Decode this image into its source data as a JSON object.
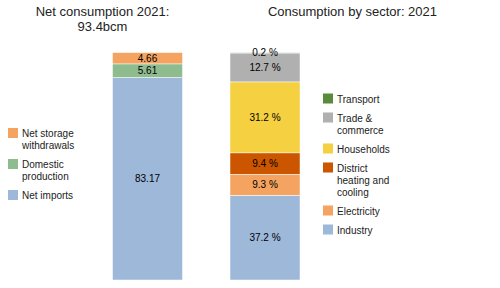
{
  "chart_data": [
    {
      "type": "bar",
      "title": "Net consumption 2021:\n93.4bcm",
      "stacked": true,
      "data_labels": true,
      "tick_labels": false,
      "legend": "left",
      "categories": [
        null
      ],
      "ylim": [
        0,
        95.3088
      ],
      "series": [
        {
          "name": "Net imports",
          "color": "#9DB8D9",
          "values": [
            83.17
          ]
        },
        {
          "name": "Domestic\nproduction",
          "color": "#8FBC8F",
          "values": [
            5.61
          ]
        },
        {
          "name": "Net storage\nwithdrawals",
          "color": "#F4A460",
          "values": [
            4.66
          ]
        }
      ]
    },
    {
      "type": "bar",
      "title": "Consumption by sector: 2021",
      "stacked": true,
      "data_labels": true,
      "tick_labels": false,
      "legend": "right",
      "categories": [
        null
      ],
      "ylim": [
        0,
        102
      ],
      "series": [
        {
          "name": "Industry",
          "color": "#9DB8D9",
          "values": [
            37.2
          ],
          "value_labels": [
            "37.2 %"
          ]
        },
        {
          "name": "Electricity",
          "color": "#F4A460",
          "values": [
            9.3
          ],
          "value_labels": [
            "9.3 %"
          ]
        },
        {
          "name": "District\nheating and\ncooling",
          "color": "#CC5500",
          "values": [
            9.4
          ],
          "value_labels": [
            "9.4 %"
          ]
        },
        {
          "name": "Households",
          "color": "#F5D040",
          "values": [
            31.2
          ],
          "value_labels": [
            "31.2 %"
          ]
        },
        {
          "name": "Trade &\ncommerce",
          "color": "#B0B0B0",
          "values": [
            12.7
          ],
          "value_labels": [
            "12.7 %"
          ]
        },
        {
          "name": "Transport",
          "color": "#5A8A3C",
          "values": [
            0.2
          ],
          "value_labels": [
            "0.2 %"
          ]
        }
      ]
    }
  ]
}
